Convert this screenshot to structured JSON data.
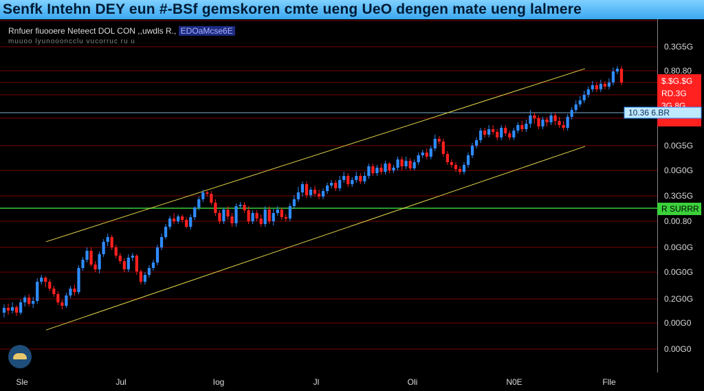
{
  "title": "Senfk Intehn DEY eun #-BSf gemskoren cmte ueng UeO dengen mate ueng lalmere",
  "info": {
    "line": "Rnfuer fiuooere Neteect DOL CON ,,uwdls R.,",
    "highlight": "EDOaMcse6E",
    "sub": "muuoo lyunoooncclu vucorruc ru u"
  },
  "colors": {
    "background": "#000000",
    "up": "#2f8cff",
    "down": "#ff2020",
    "channel": "#e6d84a",
    "grid": "#7a0000",
    "current_line": "#7fb0d0",
    "level_line": "#3bd13b"
  },
  "price_labels": [
    "0.3G5G",
    "0.80.80",
    "0.0G5G",
    "0.0G0G",
    "0.3G5G",
    "0.00.80",
    "0.0G0G",
    "0.0G0G",
    "0.2G0G",
    "0.00G0",
    "0.00G0",
    "0.0G0G"
  ],
  "current_tag": "10.36 6.BR",
  "level_tag": "R SURRR",
  "up_tag_lines": [
    "$.$G.$G",
    "RD.3G",
    "3G.8G"
  ],
  "x_labels": [
    "Sle",
    "Jul",
    "Iog",
    "Jl",
    "Oli",
    "N0E",
    "Flle"
  ],
  "chart_data": {
    "type": "candlestick",
    "x_labels": [
      "Sle",
      "Jul",
      "Iog",
      "Jl",
      "Oli",
      "N0E",
      "Flle"
    ],
    "price_axis_labels": [
      "0.3G5G",
      "0.80.80",
      "0.0G5G",
      "0.0G0G",
      "0.3G5G",
      "0.00.80",
      "0.0G0G",
      "0.0G0G",
      "0.2G0G",
      "0.00G0",
      "0.00G0",
      "0.0G0G"
    ],
    "channel": {
      "upper": [
        [
          0.07,
          0.37
        ],
        [
          0.89,
          0.86
        ]
      ],
      "lower": [
        [
          0.07,
          0.12
        ],
        [
          0.89,
          0.64
        ]
      ]
    },
    "candles": [
      [
        455,
        448,
        462,
        443
      ],
      [
        448,
        452,
        458,
        442
      ],
      [
        452,
        447,
        456,
        440
      ],
      [
        447,
        455,
        460,
        444
      ],
      [
        455,
        440,
        458,
        436
      ],
      [
        440,
        433,
        446,
        430
      ],
      [
        433,
        442,
        446,
        428
      ],
      [
        442,
        438,
        448,
        432
      ],
      [
        438,
        410,
        442,
        405
      ],
      [
        410,
        404,
        414,
        400
      ],
      [
        404,
        410,
        418,
        402
      ],
      [
        410,
        420,
        424,
        406
      ],
      [
        420,
        428,
        432,
        416
      ],
      [
        428,
        440,
        444,
        424
      ],
      [
        440,
        445,
        450,
        436
      ],
      [
        445,
        430,
        448,
        426
      ],
      [
        430,
        420,
        434,
        416
      ],
      [
        420,
        425,
        430,
        414
      ],
      [
        425,
        390,
        428,
        386
      ],
      [
        390,
        378,
        394,
        374
      ],
      [
        378,
        365,
        382,
        360
      ],
      [
        365,
        385,
        388,
        360
      ],
      [
        385,
        392,
        396,
        380
      ],
      [
        392,
        370,
        398,
        366
      ],
      [
        370,
        352,
        374,
        348
      ],
      [
        352,
        345,
        358,
        340
      ],
      [
        345,
        360,
        364,
        342
      ],
      [
        360,
        372,
        376,
        356
      ],
      [
        372,
        380,
        384,
        368
      ],
      [
        380,
        392,
        396,
        376
      ],
      [
        392,
        375,
        396,
        370
      ],
      [
        375,
        372,
        380,
        368
      ],
      [
        372,
        395,
        400,
        370
      ],
      [
        395,
        410,
        414,
        392
      ],
      [
        410,
        400,
        414,
        396
      ],
      [
        400,
        390,
        404,
        386
      ],
      [
        390,
        382,
        394,
        378
      ],
      [
        382,
        360,
        386,
        356
      ],
      [
        360,
        345,
        364,
        340
      ],
      [
        345,
        330,
        348,
        326
      ],
      [
        330,
        318,
        334,
        314
      ],
      [
        318,
        322,
        326,
        310
      ],
      [
        322,
        315,
        326,
        312
      ],
      [
        315,
        320,
        324,
        312
      ],
      [
        320,
        330,
        332,
        316
      ],
      [
        330,
        316,
        334,
        312
      ],
      [
        316,
        302,
        320,
        300
      ],
      [
        302,
        290,
        306,
        286
      ],
      [
        290,
        280,
        294,
        276
      ],
      [
        280,
        282,
        286,
        278
      ],
      [
        282,
        295,
        298,
        278
      ],
      [
        295,
        310,
        314,
        290
      ],
      [
        310,
        322,
        326,
        306
      ],
      [
        322,
        305,
        326,
        302
      ],
      [
        305,
        315,
        320,
        300
      ],
      [
        315,
        325,
        330,
        310
      ],
      [
        325,
        300,
        330,
        296
      ],
      [
        300,
        298,
        304,
        294
      ],
      [
        298,
        306,
        310,
        294
      ],
      [
        306,
        322,
        326,
        300
      ],
      [
        322,
        310,
        326,
        306
      ],
      [
        310,
        318,
        322,
        306
      ],
      [
        318,
        326,
        330,
        312
      ],
      [
        326,
        305,
        330,
        300
      ],
      [
        305,
        322,
        326,
        300
      ],
      [
        322,
        310,
        328,
        304
      ],
      [
        310,
        305,
        314,
        300
      ],
      [
        305,
        316,
        320,
        302
      ],
      [
        316,
        318,
        322,
        312
      ],
      [
        318,
        300,
        322,
        296
      ],
      [
        300,
        290,
        304,
        284
      ],
      [
        290,
        280,
        294,
        272
      ],
      [
        280,
        268,
        286,
        264
      ],
      [
        268,
        284,
        288,
        264
      ],
      [
        284,
        276,
        288,
        272
      ],
      [
        276,
        282,
        286,
        270
      ],
      [
        282,
        286,
        290,
        276
      ],
      [
        286,
        278,
        290,
        274
      ],
      [
        278,
        270,
        282,
        266
      ],
      [
        270,
        266,
        274,
        262
      ],
      [
        266,
        274,
        278,
        262
      ],
      [
        274,
        262,
        278,
        256
      ],
      [
        262,
        256,
        266,
        250
      ],
      [
        256,
        268,
        272,
        252
      ],
      [
        268,
        262,
        272,
        258
      ],
      [
        262,
        256,
        266,
        250
      ],
      [
        256,
        264,
        268,
        252
      ],
      [
        264,
        256,
        268,
        250
      ],
      [
        256,
        242,
        260,
        238
      ],
      [
        242,
        252,
        256,
        238
      ],
      [
        252,
        244,
        256,
        240
      ],
      [
        244,
        250,
        254,
        238
      ],
      [
        250,
        238,
        254,
        234
      ],
      [
        238,
        248,
        252,
        236
      ],
      [
        248,
        244,
        252,
        240
      ],
      [
        244,
        232,
        248,
        228
      ],
      [
        232,
        242,
        248,
        228
      ],
      [
        242,
        234,
        246,
        228
      ],
      [
        234,
        245,
        248,
        230
      ],
      [
        245,
        236,
        248,
        232
      ],
      [
        236,
        226,
        240,
        222
      ],
      [
        226,
        222,
        230,
        218
      ],
      [
        222,
        228,
        232,
        216
      ],
      [
        228,
        216,
        232,
        212
      ],
      [
        216,
        202,
        220,
        196
      ],
      [
        202,
        206,
        210,
        198
      ],
      [
        206,
        224,
        228,
        202
      ],
      [
        224,
        236,
        240,
        220
      ],
      [
        236,
        240,
        244,
        232
      ],
      [
        240,
        246,
        250,
        236
      ],
      [
        246,
        250,
        254,
        242
      ],
      [
        250,
        240,
        254,
        236
      ],
      [
        240,
        226,
        244,
        222
      ],
      [
        226,
        212,
        230,
        208
      ],
      [
        212,
        204,
        216,
        200
      ],
      [
        204,
        190,
        208,
        186
      ],
      [
        190,
        196,
        200,
        186
      ],
      [
        196,
        188,
        200,
        182
      ],
      [
        188,
        192,
        196,
        182
      ],
      [
        192,
        200,
        204,
        188
      ],
      [
        200,
        186,
        204,
        182
      ],
      [
        186,
        194,
        198,
        182
      ],
      [
        194,
        200,
        204,
        190
      ],
      [
        200,
        190,
        204,
        186
      ],
      [
        190,
        182,
        194,
        178
      ],
      [
        182,
        188,
        192,
        176
      ],
      [
        188,
        180,
        192,
        174
      ],
      [
        180,
        168,
        186,
        160
      ],
      [
        168,
        172,
        180,
        164
      ],
      [
        172,
        184,
        188,
        168
      ],
      [
        184,
        174,
        188,
        170
      ],
      [
        174,
        178,
        184,
        170
      ],
      [
        178,
        168,
        182,
        164
      ],
      [
        168,
        176,
        182,
        164
      ],
      [
        176,
        182,
        186,
        170
      ],
      [
        182,
        186,
        190,
        176
      ],
      [
        186,
        170,
        190,
        166
      ],
      [
        170,
        160,
        174,
        156
      ],
      [
        160,
        152,
        164,
        146
      ],
      [
        152,
        146,
        156,
        140
      ],
      [
        146,
        138,
        150,
        132
      ],
      [
        138,
        130,
        142,
        126
      ],
      [
        130,
        124,
        134,
        118
      ],
      [
        124,
        130,
        134,
        120
      ],
      [
        130,
        122,
        134,
        116
      ],
      [
        122,
        126,
        130,
        118
      ],
      [
        126,
        120,
        130,
        114
      ],
      [
        120,
        104,
        124,
        98
      ],
      [
        104,
        100,
        108,
        96
      ],
      [
        100,
        120,
        124,
        96
      ]
    ]
  }
}
